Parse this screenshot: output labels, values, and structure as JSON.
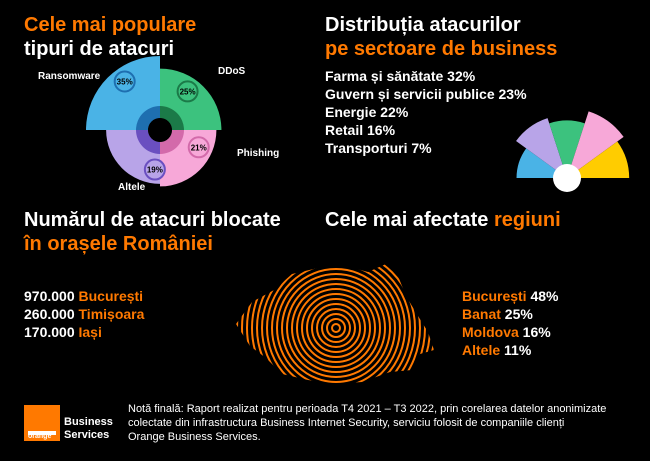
{
  "sections": {
    "attack_types_title_1": "Cele mai populare",
    "attack_types_title_2": "tipuri de atacuri",
    "sectors_title_1": "Distribuția atacurilor",
    "sectors_title_2": "pe sectoare de business",
    "blocked_title_1": "Numărul de atacuri blocate",
    "blocked_title_2": "în orașele României",
    "regions_title_1": "Cele mai afectate",
    "regions_title_2": "regiuni"
  },
  "colors": {
    "accent": "#ff7900",
    "blue": "#4ab3e6",
    "green": "#3cc27e",
    "pink": "#f7a8d8",
    "purple": "#b8a4e8",
    "yellow": "#ffcc00"
  },
  "chart_data": [
    {
      "type": "pie",
      "categories": [
        "Ransomware",
        "DDoS",
        "Phishing",
        "Altele"
      ],
      "values": [
        35,
        25,
        21,
        19
      ],
      "labels": [
        "35%",
        "25%",
        "21%",
        "19%"
      ]
    },
    {
      "type": "pie",
      "categories": [
        "Farma și sănătate",
        "Guvern și servicii publice",
        "Energie",
        "Retail",
        "Transporturi"
      ],
      "values": [
        32,
        23,
        22,
        16,
        7
      ],
      "legend": [
        "Farma și sănătate 32%",
        "Guvern și servicii publice 23%",
        "Energie 22%",
        "Retail 16%",
        "Transporturi 7%"
      ]
    },
    {
      "type": "table",
      "rows": [
        {
          "value": "970.000",
          "city": "București"
        },
        {
          "value": "260.000",
          "city": "Timișoara"
        },
        {
          "value": "170.000",
          "city": "Iași"
        }
      ]
    },
    {
      "type": "table",
      "rows": [
        {
          "region": "București",
          "share": "48%"
        },
        {
          "region": "Banat",
          "share": "25%"
        },
        {
          "region": "Moldova",
          "share": "16%"
        },
        {
          "region": "Altele",
          "share": "11%"
        }
      ]
    }
  ],
  "note": {
    "text_1": "Notă finală: Raport realizat pentru perioada T4 2021 – T3 2022, prin corelarea datelor anonimizate",
    "text_2": "colectate din infrastructura Business Internet Security, serviciu folosit de companiile clienți",
    "text_3": "Orange Business Services."
  },
  "logo": {
    "word": "orange",
    "brand_1": "Business",
    "brand_2": "Services"
  }
}
